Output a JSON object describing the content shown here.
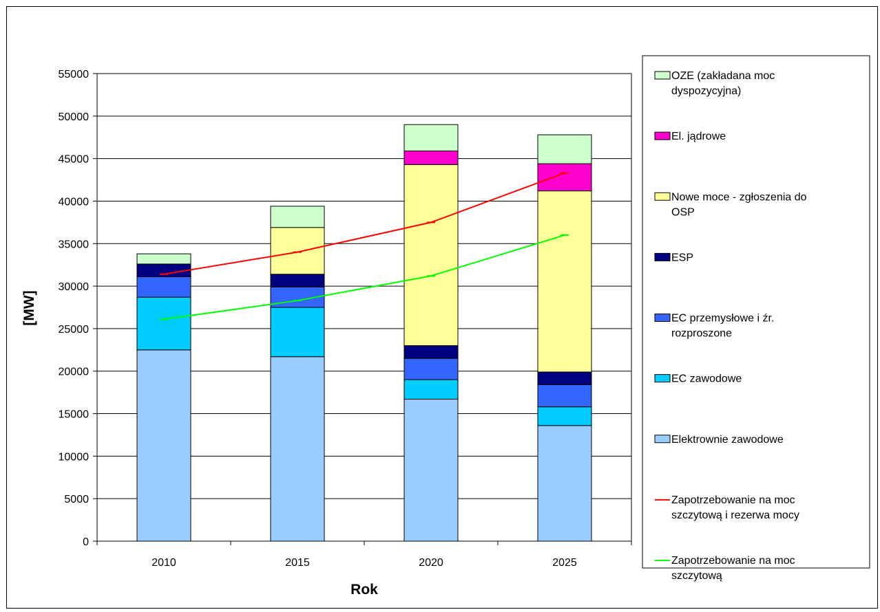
{
  "chart_data": {
    "type": "bar",
    "stacked": true,
    "categories": [
      "2010",
      "2015",
      "2020",
      "2025"
    ],
    "xlabel": "Rok",
    "ylabel": "[MW]",
    "ylim": [
      0,
      55000
    ],
    "yticks": [
      0,
      5000,
      10000,
      15000,
      20000,
      25000,
      30000,
      35000,
      40000,
      45000,
      50000,
      55000
    ],
    "grid": true,
    "legend_position": "right",
    "series": [
      {
        "name": "Elektrownie zawodowe",
        "color": "#99ccff",
        "values": [
          22500,
          21700,
          16700,
          13600
        ]
      },
      {
        "name": "EC zawodowe",
        "color": "#00ccff",
        "values": [
          6200,
          5800,
          2300,
          2200
        ]
      },
      {
        "name": "EC przemysłowe i źr. rozproszone",
        "color": "#3366ff",
        "values": [
          2400,
          2400,
          2500,
          2600
        ]
      },
      {
        "name": "ESP",
        "color": "#000080",
        "values": [
          1500,
          1500,
          1500,
          1500
        ]
      },
      {
        "name": "Nowe moce - zgłoszenia do OSP",
        "color": "#ffff99",
        "values": [
          0,
          5500,
          21300,
          21300
        ]
      },
      {
        "name": "El. jądrowe",
        "color": "#ff00cc",
        "values": [
          0,
          0,
          1600,
          3200
        ]
      },
      {
        "name": "OZE (zakładana moc dyspozycyjna)",
        "color": "#ccffcc",
        "values": [
          1200,
          2500,
          3100,
          3400
        ]
      }
    ],
    "lines": [
      {
        "name": "Zapotrzebowanie na moc szczytową i rezerwa mocy",
        "color": "#ff0000",
        "values": [
          31400,
          34000,
          37500,
          43300
        ]
      },
      {
        "name": "Zapotrzebowanie na moc szczytową",
        "color": "#00ff00",
        "values": [
          26100,
          28300,
          31200,
          36000
        ]
      }
    ],
    "legend": [
      {
        "label": "OZE (zakładana moc",
        "label2": "dyspozycyjna)",
        "kind": "box",
        "color": "#ccffcc"
      },
      {
        "label": "El. jądrowe",
        "label2": "",
        "kind": "box",
        "color": "#ff00cc"
      },
      {
        "label": "Nowe moce - zgłoszenia do",
        "label2": "OSP",
        "kind": "box",
        "color": "#ffff99"
      },
      {
        "label": "ESP",
        "label2": "",
        "kind": "box",
        "color": "#000080"
      },
      {
        "label": "EC przemysłowe i źr.",
        "label2": "rozproszone",
        "kind": "box",
        "color": "#3366ff"
      },
      {
        "label": "EC zawodowe",
        "label2": "",
        "kind": "box",
        "color": "#00ccff"
      },
      {
        "label": "Elektrownie zawodowe",
        "label2": "",
        "kind": "box",
        "color": "#99ccff"
      },
      {
        "label": "Zapotrzebowanie na moc",
        "label2": "szczytową i rezerwa mocy",
        "kind": "line",
        "color": "#ff0000"
      },
      {
        "label": "Zapotrzebowanie na moc",
        "label2": "szczytową",
        "kind": "line",
        "color": "#00ff00"
      }
    ]
  }
}
